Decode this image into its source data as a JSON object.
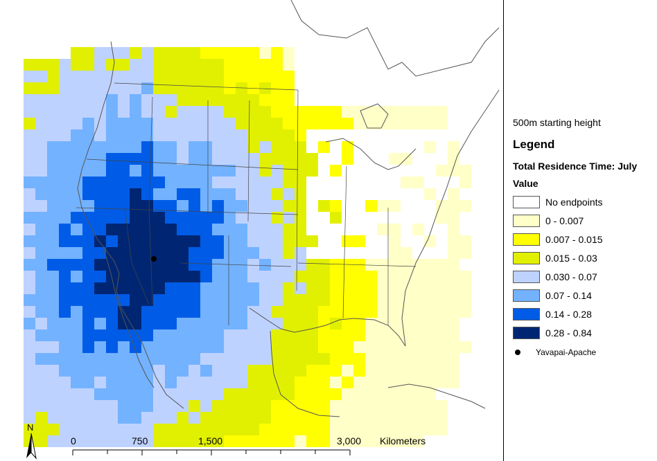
{
  "subtitle": "500m starting height",
  "legend": {
    "heading": "Legend",
    "title": "Total Residence Time: July",
    "field": "Value",
    "classes": [
      {
        "label": "No endpoints",
        "color": "#ffffff"
      },
      {
        "label": "0 - 0.007",
        "color": "#ffffc8"
      },
      {
        "label": "0.007 - 0.015",
        "color": "#ffff00"
      },
      {
        "label": "0.015 - 0.03",
        "color": "#e1f000"
      },
      {
        "label": "0.030 - 0.07",
        "color": "#bed2ff"
      },
      {
        "label": "0.07 - 0.14",
        "color": "#73b2ff"
      },
      {
        "label": "0.14 - 0.28",
        "color": "#005ce6"
      },
      {
        "label": "0.28 - 0.84",
        "color": "#002673"
      }
    ],
    "point_label": "Yavapai-Apache"
  },
  "north_label": "N",
  "scale": {
    "ticks": [
      "0",
      "750",
      "1,500",
      "3,000"
    ],
    "unit": "Kilometers"
  }
}
